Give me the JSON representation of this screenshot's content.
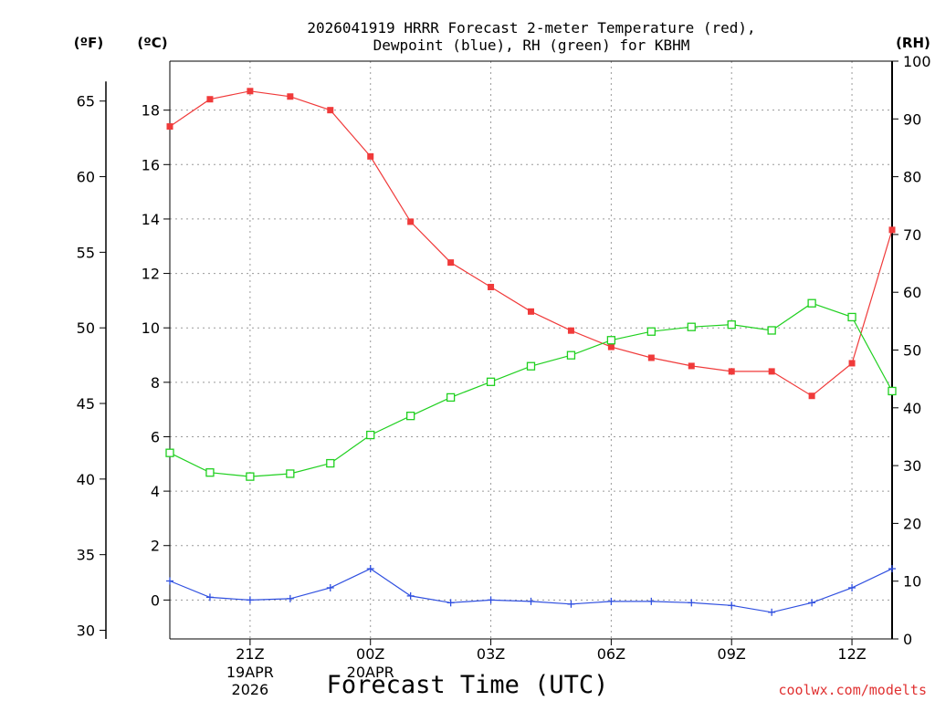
{
  "chart_data": {
    "type": "line",
    "title": [
      "2026041919 HRRR Forecast 2-meter Temperature (red),",
      "Dewpoint (blue), RH (green) for KBHM"
    ],
    "xlabel": "Forecast Time (UTC)",
    "credit": "coolwx.com/modelts",
    "units": {
      "fahrenheit": "(ºF)",
      "celsius": "(ºC)",
      "rh": "(RH)"
    },
    "x": [
      19,
      20,
      21,
      22,
      23,
      24,
      25,
      26,
      27,
      28,
      29,
      30,
      31,
      32,
      33,
      34,
      35,
      36,
      37
    ],
    "xlim": [
      19,
      37
    ],
    "x_ticks": [
      {
        "x": 21,
        "label": "21Z",
        "sub": [
          "19APR",
          "2026"
        ]
      },
      {
        "x": 24,
        "label": "00Z",
        "sub": [
          "20APR"
        ]
      },
      {
        "x": 27,
        "label": "03Z",
        "sub": []
      },
      {
        "x": 30,
        "label": "06Z",
        "sub": []
      },
      {
        "x": 33,
        "label": "09Z",
        "sub": []
      },
      {
        "x": 36,
        "label": "12Z",
        "sub": []
      }
    ],
    "ylim_celsius": [
      -1.43,
      19.8
    ],
    "yticks_celsius": [
      0,
      2,
      4,
      6,
      8,
      10,
      12,
      14,
      16,
      18
    ],
    "yticks_fahrenheit": [
      30,
      35,
      40,
      45,
      50,
      55,
      60,
      65
    ],
    "ylim_rh": [
      0,
      100
    ],
    "yticks_rh": [
      0,
      10,
      20,
      30,
      40,
      50,
      60,
      70,
      80,
      90,
      100
    ],
    "series": [
      {
        "name": "2-meter Temperature",
        "axis": "celsius",
        "color": "#f03a3a",
        "marker": "filled-square",
        "values": [
          17.4,
          18.4,
          18.7,
          18.5,
          18.0,
          16.3,
          13.9,
          12.4,
          11.5,
          10.6,
          9.9,
          9.3,
          8.9,
          8.6,
          8.4,
          8.4,
          7.5,
          8.7,
          13.6
        ]
      },
      {
        "name": "Dewpoint",
        "axis": "celsius",
        "color": "#3050e0",
        "marker": "plus",
        "values": [
          0.7,
          0.1,
          0.0,
          0.05,
          0.45,
          1.15,
          0.15,
          -0.1,
          0.0,
          -0.05,
          -0.15,
          -0.05,
          -0.05,
          -0.1,
          -0.2,
          -0.45,
          -0.1,
          0.45,
          1.15
        ]
      },
      {
        "name": "RH",
        "axis": "rh",
        "color": "#20d020",
        "marker": "open-square",
        "values": [
          32.2,
          28.8,
          28.1,
          28.6,
          30.4,
          35.3,
          38.6,
          41.8,
          44.5,
          47.2,
          49.1,
          51.7,
          53.2,
          54.0,
          54.4,
          53.4,
          58.1,
          55.7,
          42.9
        ]
      }
    ]
  }
}
